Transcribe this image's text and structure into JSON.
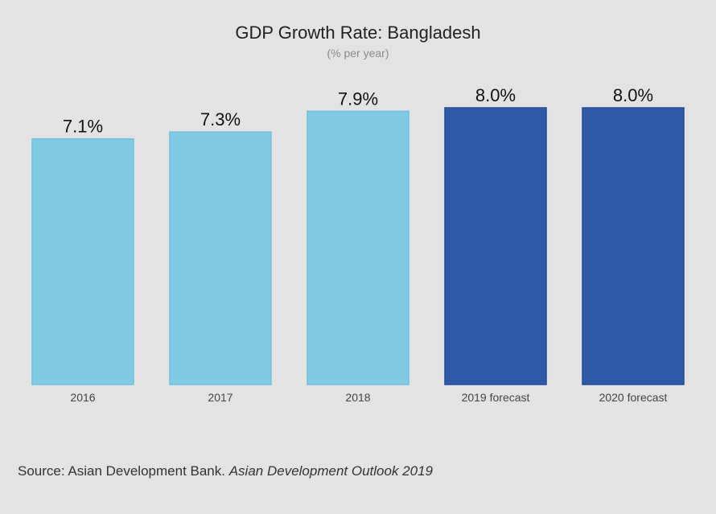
{
  "chart_data": {
    "type": "bar",
    "title": "GDP Growth Rate: Bangladesh",
    "subtitle": "(% per year)",
    "categories": [
      "2016",
      "2017",
      "2018",
      "2019 forecast",
      "2020 forecast"
    ],
    "values": [
      7.1,
      7.3,
      7.9,
      8.0,
      8.0
    ],
    "value_labels": [
      "7.1%",
      "7.3%",
      "7.9%",
      "8.0%",
      "8.0%"
    ],
    "bar_colors": [
      "#80cae3",
      "#80cae3",
      "#80cae3",
      "#2e5ba8",
      "#2e5ba8"
    ],
    "bar_outline_colors": [
      "#6fbfdc",
      "#6fbfdc",
      "#6fbfdc",
      "#234d97",
      "#234d97"
    ],
    "ylim": [
      0,
      8.0
    ],
    "grid": false,
    "legend": "none"
  },
  "source": {
    "prefix": "Source: Asian Development Bank.",
    "publication": "Asian Development Outlook 2019"
  }
}
